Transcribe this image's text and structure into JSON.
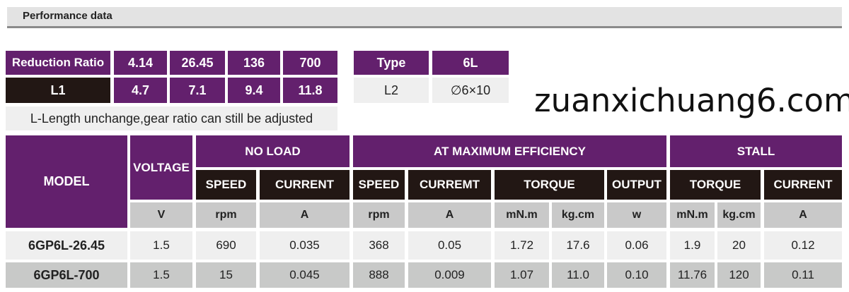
{
  "section_title": "Performance data",
  "ratio_table": {
    "reduction_label": "Reduction Ratio",
    "ratios": [
      "4.14",
      "26.45",
      "136",
      "700"
    ],
    "l1_label": "L1",
    "l1_values": [
      "4.7",
      "7.1",
      "9.4",
      "11.8"
    ],
    "note": "L-Length unchange,gear ratio can still be adjusted"
  },
  "type_table": {
    "type_label": "Type",
    "type_value": "6L",
    "l2_label": "L2",
    "l2_value": "∅6×10"
  },
  "perf_table": {
    "model": "MODEL",
    "voltage": "VOLTAGE",
    "groups": {
      "no_load": "NO LOAD",
      "max_eff": "AT MAXIMUM EFFICIENCY",
      "stall": "STALL"
    },
    "sub": {
      "nl_speed": "SPEED",
      "nl_current": "CURRENT",
      "me_speed": "SPEED",
      "me_current": "CURREMT",
      "me_torque": "TORQUE",
      "me_output": "OUTPUT",
      "st_torque": "TORQUE",
      "st_current": "CURRENT"
    },
    "units": [
      "V",
      "rpm",
      "A",
      "rpm",
      "A",
      "mN.m",
      "kg.cm",
      "w",
      "mN.m",
      "kg.cm",
      "A"
    ],
    "rows": [
      [
        "6GP6L-26.45",
        "1.5",
        "690",
        "0.035",
        "368",
        "0.05",
        "1.72",
        "17.6",
        "0.06",
        "1.9",
        "20",
        "0.12"
      ],
      [
        "6GP6L-700",
        "1.5",
        "15",
        "0.045",
        "888",
        "0.009",
        "1.07",
        "11.0",
        "0.10",
        "11.76",
        "120",
        "0.11"
      ]
    ]
  },
  "watermark": "zuanxichuang6.com",
  "colors": {
    "purple": "#63206d",
    "black": "#221714",
    "gray": "#c9c9c9",
    "light": "#efefef"
  }
}
